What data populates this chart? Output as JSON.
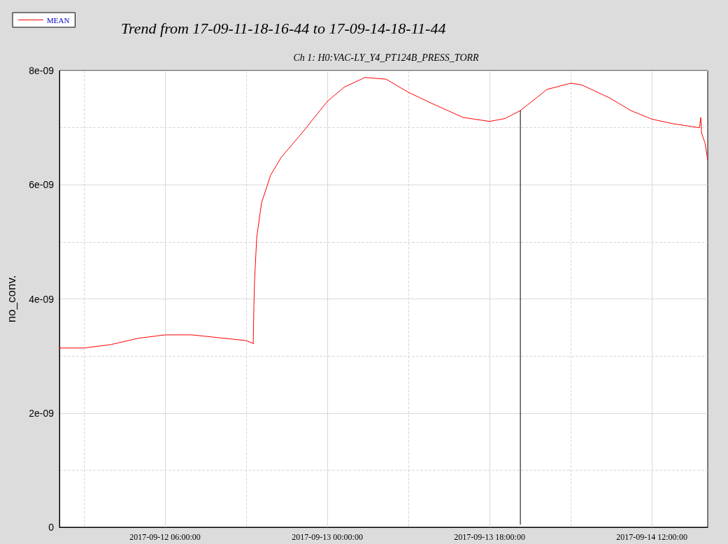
{
  "chart_data": {
    "type": "line",
    "title": "Trend from 17-09-11-18-16-44 to 17-09-14-18-11-44",
    "subtitle": "Ch 1: H0:VAC-LY_Y4_PT124B_PRESS_TORR",
    "ylabel": "no_conv.",
    "xlim": [
      "2017-09-11T18:17",
      "2017-09-14T18:12"
    ],
    "xticks": [
      {
        "value": "2017-09-11T21:00",
        "label": null
      },
      {
        "value": "2017-09-12T06:00",
        "label": "2017-09-12 06:00:00"
      },
      {
        "value": "2017-09-12T15:00",
        "label": null
      },
      {
        "value": "2017-09-13T00:00",
        "label": "2017-09-13 00:00:00"
      },
      {
        "value": "2017-09-13T09:00",
        "label": null
      },
      {
        "value": "2017-09-13T18:00",
        "label": "2017-09-13 18:00:00"
      },
      {
        "value": "2017-09-14T03:00",
        "label": null
      },
      {
        "value": "2017-09-14T12:00",
        "label": "2017-09-14 12:00:00"
      }
    ],
    "ylim": [
      0,
      8e-09
    ],
    "yticks": [
      0,
      {
        "value": 1e-09,
        "label": null
      },
      {
        "value": 2e-09,
        "label": "2e-09"
      },
      {
        "value": 3e-09,
        "label": null
      },
      {
        "value": 4e-09,
        "label": "4e-09"
      },
      {
        "value": 5e-09,
        "label": null
      },
      {
        "value": 6e-09,
        "label": "6e-09"
      },
      {
        "value": 7e-09,
        "label": null
      },
      {
        "value": 8e-09,
        "label": "8e-09"
      }
    ],
    "grid": true,
    "legend": "top left",
    "marker": "none",
    "line_style": "solid",
    "series": [
      {
        "name": "MEAN",
        "color": "#ff0000",
        "x": [
          "2017-09-11T18:17",
          "2017-09-11T21:00",
          "2017-09-12T00:00",
          "2017-09-12T03:00",
          "2017-09-12T06:00",
          "2017-09-12T09:00",
          "2017-09-12T12:00",
          "2017-09-12T15:00",
          "2017-09-12T15:45",
          "2017-09-12T15:47",
          "2017-09-12T15:51",
          "2017-09-12T15:56",
          "2017-09-12T16:10",
          "2017-09-12T16:42",
          "2017-09-12T17:43",
          "2017-09-12T18:53",
          "2017-09-12T21:12",
          "2017-09-13T00:00",
          "2017-09-13T01:52",
          "2017-09-13T04:11",
          "2017-09-13T06:31",
          "2017-09-13T09:00",
          "2017-09-13T11:57",
          "2017-09-13T15:03",
          "2017-09-13T18:00",
          "2017-09-13T19:42",
          "2017-09-13T21:25",
          "2017-09-14T00:22",
          "2017-09-14T03:00",
          "2017-09-14T04:14",
          "2017-09-14T07:20",
          "2017-09-14T09:40",
          "2017-09-14T12:00",
          "2017-09-14T14:20",
          "2017-09-14T17:17",
          "2017-09-14T17:26",
          "2017-09-14T17:31",
          "2017-09-14T17:54",
          "2017-09-14T18:12"
        ],
        "values": [
          3.14e-09,
          3.14e-09,
          3.2e-09,
          3.31e-09,
          3.37e-09,
          3.37e-09,
          3.32e-09,
          3.27e-09,
          3.22e-09,
          3.21e-09,
          3.85e-09,
          4.34e-09,
          5.07e-09,
          5.68e-09,
          6.17e-09,
          6.48e-09,
          6.91e-09,
          7.46e-09,
          7.71e-09,
          7.88e-09,
          7.85e-09,
          7.62e-09,
          7.4e-09,
          7.18e-09,
          7.11e-09,
          7.16e-09,
          7.3e-09,
          7.67e-09,
          7.78e-09,
          7.75e-09,
          7.52e-09,
          7.3e-09,
          7.15e-09,
          7.07e-09,
          7e-09,
          7.18e-09,
          6.91e-09,
          6.73e-09,
          6.44e-09
        ]
      },
      {
        "color": "#000000",
        "x": [
          "2017-09-13T21:25",
          "2017-09-13T21:25"
        ],
        "values": [
          7.3e-09,
          5e-11
        ]
      }
    ]
  }
}
